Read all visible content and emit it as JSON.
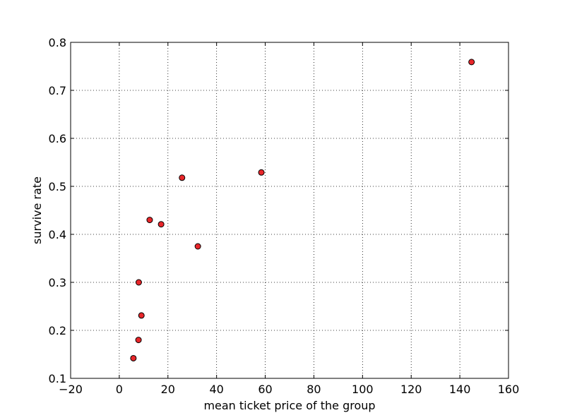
{
  "chart_data": {
    "type": "scatter",
    "xlabel": "mean ticket price of the group",
    "ylabel": "survive rate",
    "xlim": [
      -20,
      160
    ],
    "ylim": [
      0.1,
      0.8
    ],
    "x_ticks": [
      -20,
      0,
      20,
      40,
      60,
      80,
      100,
      120,
      140,
      160
    ],
    "y_ticks": [
      0.1,
      0.2,
      0.3,
      0.4,
      0.5,
      0.6,
      0.7,
      0.8
    ],
    "x_tick_labels": [
      "−20",
      "0",
      "20",
      "40",
      "60",
      "80",
      "100",
      "120",
      "140",
      "160"
    ],
    "y_tick_labels": [
      "0.1",
      "0.2",
      "0.3",
      "0.4",
      "0.5",
      "0.6",
      "0.7",
      "0.8"
    ],
    "grid": true,
    "marker_color": "#e8262a",
    "marker_edge_color": "#000000",
    "points": [
      {
        "x": 5.8,
        "y": 0.142
      },
      {
        "x": 7.9,
        "y": 0.18
      },
      {
        "x": 8.0,
        "y": 0.3
      },
      {
        "x": 9.1,
        "y": 0.231
      },
      {
        "x": 12.5,
        "y": 0.43
      },
      {
        "x": 17.2,
        "y": 0.421
      },
      {
        "x": 25.8,
        "y": 0.518
      },
      {
        "x": 32.3,
        "y": 0.375
      },
      {
        "x": 58.4,
        "y": 0.529
      },
      {
        "x": 144.8,
        "y": 0.759
      }
    ]
  }
}
